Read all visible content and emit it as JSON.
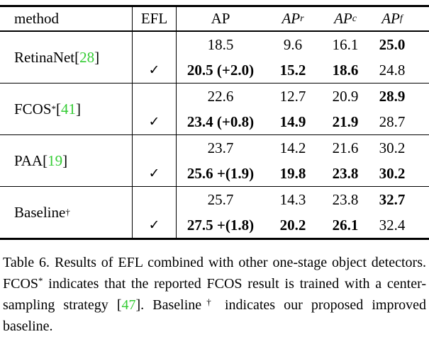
{
  "colors": {
    "citation_green": "#33cc33",
    "text": "#000000",
    "background": "#ffffff"
  },
  "table": {
    "header": {
      "method": "method",
      "efl": "EFL",
      "ap": "AP",
      "ap_r": {
        "base": "AP",
        "sub": "r"
      },
      "ap_c": {
        "base": "AP",
        "sub": "c"
      },
      "ap_f": {
        "base": "AP",
        "sub": "f"
      }
    },
    "groups": [
      {
        "method": {
          "name": "RetinaNet",
          "sup": "",
          "bracket_open": " [",
          "cite": "28",
          "bracket_close": "]"
        },
        "rows": [
          {
            "efl": "",
            "ap": {
              "v": "18.5",
              "b": false
            },
            "ap_r": {
              "v": "9.6",
              "b": false
            },
            "ap_c": {
              "v": "16.1",
              "b": false
            },
            "ap_f": {
              "v": "25.0",
              "b": true
            }
          },
          {
            "efl": "✓",
            "ap": {
              "v": "20.5 (+2.0)",
              "b": true
            },
            "ap_r": {
              "v": "15.2",
              "b": true
            },
            "ap_c": {
              "v": "18.6",
              "b": true
            },
            "ap_f": {
              "v": "24.8",
              "b": false
            }
          }
        ]
      },
      {
        "method": {
          "name": "FCOS",
          "sup": "*",
          "bracket_open": " [",
          "cite": "41",
          "bracket_close": "]"
        },
        "rows": [
          {
            "efl": "",
            "ap": {
              "v": "22.6",
              "b": false
            },
            "ap_r": {
              "v": "12.7",
              "b": false
            },
            "ap_c": {
              "v": "20.9",
              "b": false
            },
            "ap_f": {
              "v": "28.9",
              "b": true
            }
          },
          {
            "efl": "✓",
            "ap": {
              "v": "23.4 (+0.8)",
              "b": true
            },
            "ap_r": {
              "v": "14.9",
              "b": true
            },
            "ap_c": {
              "v": "21.9",
              "b": true
            },
            "ap_f": {
              "v": "28.7",
              "b": false
            }
          }
        ]
      },
      {
        "method": {
          "name": "PAA",
          "sup": "",
          "bracket_open": " [",
          "cite": "19",
          "bracket_close": "]"
        },
        "rows": [
          {
            "efl": "",
            "ap": {
              "v": "23.7",
              "b": false
            },
            "ap_r": {
              "v": "14.2",
              "b": false
            },
            "ap_c": {
              "v": "21.6",
              "b": false
            },
            "ap_f": {
              "v": "30.2",
              "b": false
            }
          },
          {
            "efl": "✓",
            "ap": {
              "v": "25.6 +(1.9)",
              "b": true
            },
            "ap_r": {
              "v": "19.8",
              "b": true
            },
            "ap_c": {
              "v": "23.8",
              "b": true
            },
            "ap_f": {
              "v": "30.2",
              "b": true
            }
          }
        ]
      },
      {
        "method": {
          "name": "Baseline",
          "sup": "†",
          "bracket_open": "",
          "cite": "",
          "bracket_close": ""
        },
        "rows": [
          {
            "efl": "",
            "ap": {
              "v": "25.7",
              "b": false
            },
            "ap_r": {
              "v": "14.3",
              "b": false
            },
            "ap_c": {
              "v": "23.8",
              "b": false
            },
            "ap_f": {
              "v": "32.7",
              "b": true
            }
          },
          {
            "efl": "✓",
            "ap": {
              "v": "27.5 +(1.8)",
              "b": true
            },
            "ap_r": {
              "v": "20.2",
              "b": true
            },
            "ap_c": {
              "v": "26.1",
              "b": true
            },
            "ap_f": {
              "v": "32.4",
              "b": false
            }
          }
        ]
      }
    ]
  },
  "caption": {
    "part1": "Table 6. Results of EFL combined with other one-stage object detectors. FCOS",
    "sup1": "*",
    "part2": " indicates that the reported FCOS result is trained with a center-sampling strategy [",
    "cite": "47",
    "part3": "]. Baseline",
    "sup2": "†",
    "part4": " indicates our proposed improved baseline."
  }
}
